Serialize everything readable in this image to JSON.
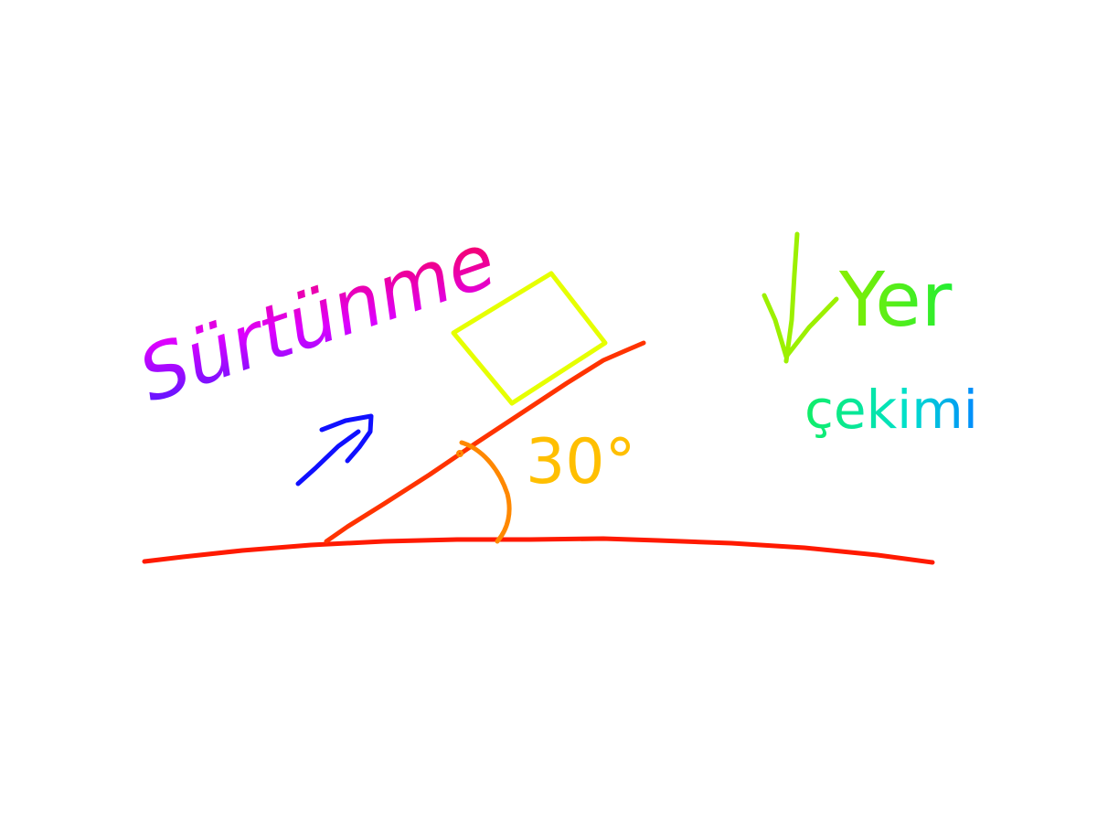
{
  "canvas": {
    "background": "#ffffff"
  },
  "labels": {
    "friction": "Sürtünme",
    "gravity_line1": "Yer",
    "gravity_line2": "çekimi",
    "angle": "30°"
  },
  "diagram": {
    "incline_angle_deg": 30
  },
  "colors": {
    "ground": "#ff1a00",
    "incline": "#ff3300",
    "angle_arc": "#ff8800",
    "angle_text": "#ffbf00",
    "block": "#e6ff00",
    "friction_arrow": "#1010ff",
    "friction_text_start": "#3b1cff",
    "friction_text_mid": "#dd00ff",
    "friction_text_end": "#ff0033",
    "gravity_arrow": "#9cf000",
    "gravity_text": "#22ee33",
    "cekimi_text_start": "#11ee66",
    "cekimi_text_end": "#0088ff"
  }
}
